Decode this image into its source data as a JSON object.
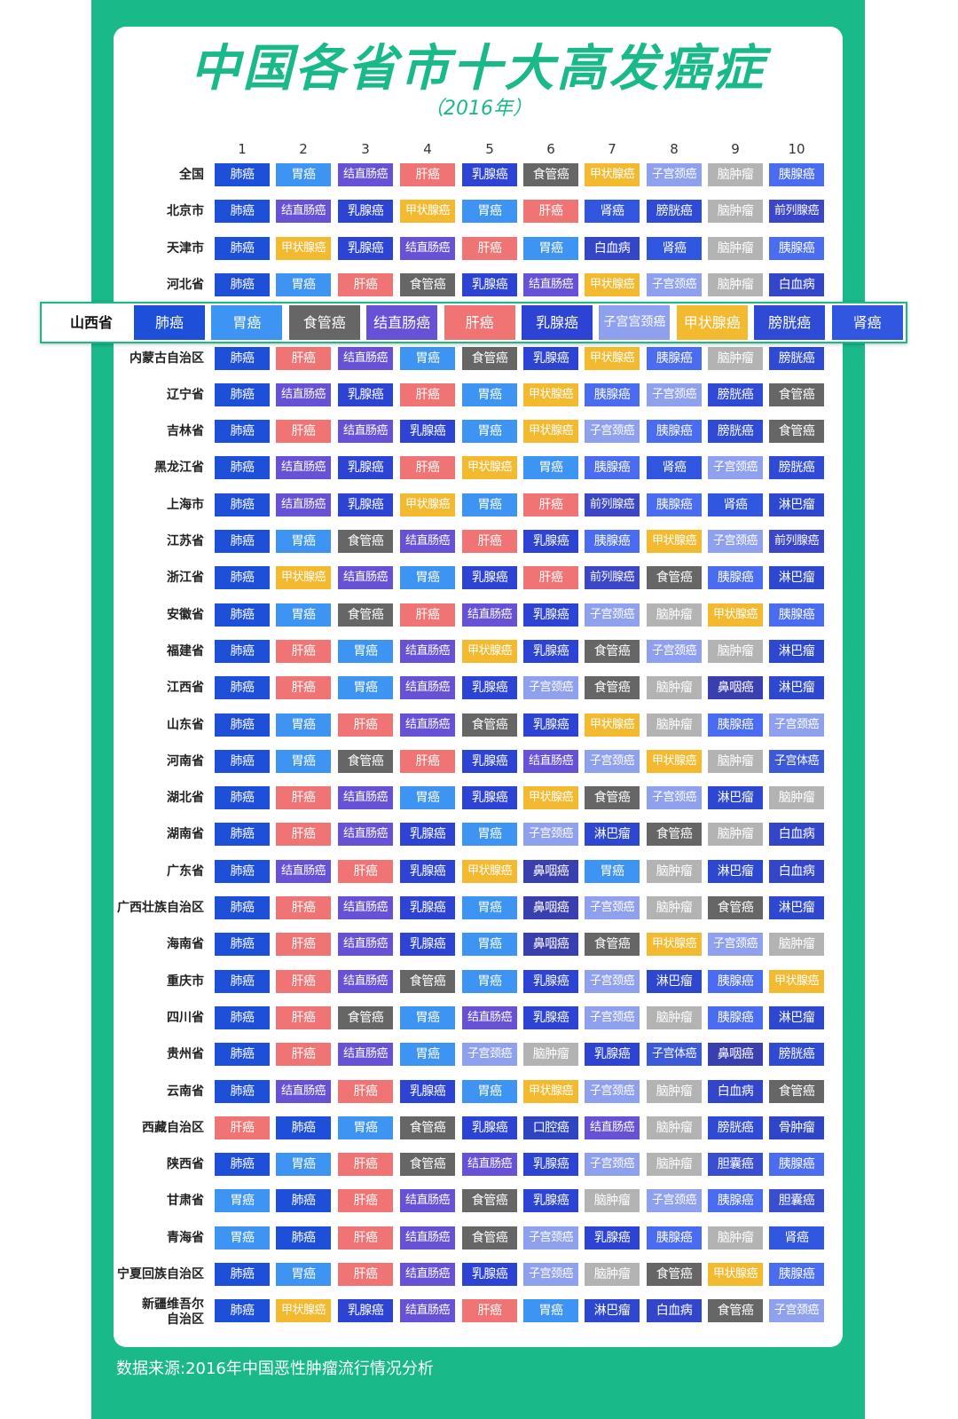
{
  "title": "中国各省市十大高发癌症",
  "subtitle": "（2016年）",
  "source": "数据来源:2016年中国恶性肿瘤流行情况分析",
  "colors": {
    "frame": "#19b98a",
    "肺癌": "#1d4fd8",
    "胃癌": "#3d94f2",
    "结直肠癌": "#6751d6",
    "肝癌": "#f07474",
    "乳腺癌": "#2c43d4",
    "食管癌": "#666666",
    "甲状腺癌": "#f3b92f",
    "子宫颈癌": "#8fa0ee",
    "脑肿瘤": "#b3b3b3",
    "胰腺癌": "#4a6cf0",
    "前列腺癌": "#3b46c8",
    "膀胱癌": "#2f4bd5",
    "肾癌": "#3157e0",
    "白血病": "#3346c9",
    "淋巴瘤": "#2d47d0",
    "鼻咽癌": "#3a3fb0",
    "子宫体癌": "#3c5ad8",
    "口腔癌": "#2e44c0",
    "骨肿瘤": "#2f45c8",
    "胆囊癌": "#3a4fcf"
  },
  "chart_data": {
    "type": "table",
    "columns": [
      "1",
      "2",
      "3",
      "4",
      "5",
      "6",
      "7",
      "8",
      "9",
      "10"
    ],
    "rows": [
      {
        "region": "全国",
        "cancers": [
          "肺癌",
          "胃癌",
          "结直肠癌",
          "肝癌",
          "乳腺癌",
          "食管癌",
          "甲状腺癌",
          "子宫颈癌",
          "脑肿瘤",
          "胰腺癌"
        ]
      },
      {
        "region": "北京市",
        "cancers": [
          "肺癌",
          "结直肠癌",
          "乳腺癌",
          "甲状腺癌",
          "胃癌",
          "肝癌",
          "肾癌",
          "膀胱癌",
          "脑肿瘤",
          "前列腺癌"
        ]
      },
      {
        "region": "天津市",
        "cancers": [
          "肺癌",
          "甲状腺癌",
          "乳腺癌",
          "结直肠癌",
          "肝癌",
          "胃癌",
          "白血病",
          "肾癌",
          "脑肿瘤",
          "胰腺癌"
        ]
      },
      {
        "region": "河北省",
        "cancers": [
          "肺癌",
          "胃癌",
          "肝癌",
          "食管癌",
          "乳腺癌",
          "结直肠癌",
          "甲状腺癌",
          "子宫颈癌",
          "脑肿瘤",
          "白血病"
        ]
      },
      {
        "region": "内蒙古自治区",
        "cancers": [
          "肺癌",
          "肝癌",
          "结直肠癌",
          "胃癌",
          "食管癌",
          "乳腺癌",
          "甲状腺癌",
          "胰腺癌",
          "脑肿瘤",
          "膀胱癌"
        ]
      },
      {
        "region": "辽宁省",
        "cancers": [
          "肺癌",
          "结直肠癌",
          "乳腺癌",
          "肝癌",
          "胃癌",
          "甲状腺癌",
          "胰腺癌",
          "子宫颈癌",
          "膀胱癌",
          "食管癌"
        ]
      },
      {
        "region": "吉林省",
        "cancers": [
          "肺癌",
          "肝癌",
          "结直肠癌",
          "乳腺癌",
          "胃癌",
          "甲状腺癌",
          "子宫颈癌",
          "胰腺癌",
          "膀胱癌",
          "食管癌"
        ]
      },
      {
        "region": "黑龙江省",
        "cancers": [
          "肺癌",
          "结直肠癌",
          "乳腺癌",
          "肝癌",
          "甲状腺癌",
          "胃癌",
          "胰腺癌",
          "肾癌",
          "子宫颈癌",
          "膀胱癌"
        ]
      },
      {
        "region": "上海市",
        "cancers": [
          "肺癌",
          "结直肠癌",
          "乳腺癌",
          "甲状腺癌",
          "胃癌",
          "肝癌",
          "前列腺癌",
          "胰腺癌",
          "肾癌",
          "淋巴瘤"
        ]
      },
      {
        "region": "江苏省",
        "cancers": [
          "肺癌",
          "胃癌",
          "食管癌",
          "结直肠癌",
          "肝癌",
          "乳腺癌",
          "胰腺癌",
          "甲状腺癌",
          "子宫颈癌",
          "前列腺癌"
        ]
      },
      {
        "region": "浙江省",
        "cancers": [
          "肺癌",
          "甲状腺癌",
          "结直肠癌",
          "胃癌",
          "乳腺癌",
          "肝癌",
          "前列腺癌",
          "食管癌",
          "胰腺癌",
          "淋巴瘤"
        ]
      },
      {
        "region": "安徽省",
        "cancers": [
          "肺癌",
          "胃癌",
          "食管癌",
          "肝癌",
          "结直肠癌",
          "乳腺癌",
          "子宫颈癌",
          "脑肿瘤",
          "甲状腺癌",
          "胰腺癌"
        ]
      },
      {
        "region": "福建省",
        "cancers": [
          "肺癌",
          "肝癌",
          "胃癌",
          "结直肠癌",
          "甲状腺癌",
          "乳腺癌",
          "食管癌",
          "子宫颈癌",
          "脑肿瘤",
          "淋巴瘤"
        ]
      },
      {
        "region": "江西省",
        "cancers": [
          "肺癌",
          "肝癌",
          "胃癌",
          "结直肠癌",
          "乳腺癌",
          "子宫颈癌",
          "食管癌",
          "脑肿瘤",
          "鼻咽癌",
          "淋巴瘤"
        ]
      },
      {
        "region": "山东省",
        "cancers": [
          "肺癌",
          "胃癌",
          "肝癌",
          "结直肠癌",
          "食管癌",
          "乳腺癌",
          "甲状腺癌",
          "脑肿瘤",
          "胰腺癌",
          "子宫颈癌"
        ]
      },
      {
        "region": "河南省",
        "cancers": [
          "肺癌",
          "胃癌",
          "食管癌",
          "肝癌",
          "乳腺癌",
          "结直肠癌",
          "子宫颈癌",
          "甲状腺癌",
          "脑肿瘤",
          "子宫体癌"
        ]
      },
      {
        "region": "湖北省",
        "cancers": [
          "肺癌",
          "肝癌",
          "结直肠癌",
          "胃癌",
          "乳腺癌",
          "甲状腺癌",
          "食管癌",
          "子宫颈癌",
          "淋巴瘤",
          "脑肿瘤"
        ]
      },
      {
        "region": "湖南省",
        "cancers": [
          "肺癌",
          "肝癌",
          "结直肠癌",
          "乳腺癌",
          "胃癌",
          "子宫颈癌",
          "淋巴瘤",
          "食管癌",
          "脑肿瘤",
          "白血病"
        ]
      },
      {
        "region": "广东省",
        "cancers": [
          "肺癌",
          "结直肠癌",
          "肝癌",
          "乳腺癌",
          "甲状腺癌",
          "鼻咽癌",
          "胃癌",
          "脑肿瘤",
          "淋巴瘤",
          "白血病"
        ]
      },
      {
        "region": "广西壮族自治区",
        "cancers": [
          "肺癌",
          "肝癌",
          "结直肠癌",
          "乳腺癌",
          "胃癌",
          "鼻咽癌",
          "子宫颈癌",
          "脑肿瘤",
          "食管癌",
          "淋巴瘤"
        ]
      },
      {
        "region": "海南省",
        "cancers": [
          "肺癌",
          "肝癌",
          "结直肠癌",
          "乳腺癌",
          "胃癌",
          "鼻咽癌",
          "食管癌",
          "甲状腺癌",
          "子宫颈癌",
          "脑肿瘤"
        ]
      },
      {
        "region": "重庆市",
        "cancers": [
          "肺癌",
          "肝癌",
          "结直肠癌",
          "食管癌",
          "胃癌",
          "乳腺癌",
          "子宫颈癌",
          "淋巴瘤",
          "胰腺癌",
          "甲状腺癌"
        ]
      },
      {
        "region": "四川省",
        "cancers": [
          "肺癌",
          "肝癌",
          "食管癌",
          "胃癌",
          "结直肠癌",
          "乳腺癌",
          "子宫颈癌",
          "脑肿瘤",
          "胰腺癌",
          "淋巴瘤"
        ]
      },
      {
        "region": "贵州省",
        "cancers": [
          "肺癌",
          "肝癌",
          "结直肠癌",
          "胃癌",
          "子宫颈癌",
          "脑肿瘤",
          "乳腺癌",
          "子宫体癌",
          "鼻咽癌",
          "膀胱癌"
        ]
      },
      {
        "region": "云南省",
        "cancers": [
          "肺癌",
          "结直肠癌",
          "肝癌",
          "乳腺癌",
          "胃癌",
          "甲状腺癌",
          "子宫颈癌",
          "脑肿瘤",
          "白血病",
          "食管癌"
        ]
      },
      {
        "region": "西藏自治区",
        "cancers": [
          "肝癌",
          "肺癌",
          "胃癌",
          "食管癌",
          "乳腺癌",
          "口腔癌",
          "结直肠癌",
          "脑肿瘤",
          "膀胱癌",
          "骨肿瘤"
        ]
      },
      {
        "region": "陕西省",
        "cancers": [
          "肺癌",
          "胃癌",
          "肝癌",
          "食管癌",
          "结直肠癌",
          "乳腺癌",
          "子宫颈癌",
          "脑肿瘤",
          "胆囊癌",
          "胰腺癌"
        ]
      },
      {
        "region": "甘肃省",
        "cancers": [
          "胃癌",
          "肺癌",
          "肝癌",
          "结直肠癌",
          "食管癌",
          "乳腺癌",
          "脑肿瘤",
          "子宫颈癌",
          "胰腺癌",
          "胆囊癌"
        ]
      },
      {
        "region": "青海省",
        "cancers": [
          "胃癌",
          "肺癌",
          "肝癌",
          "结直肠癌",
          "食管癌",
          "子宫颈癌",
          "乳腺癌",
          "胰腺癌",
          "脑肿瘤",
          "肾癌"
        ]
      },
      {
        "region": "宁夏回族自治区",
        "cancers": [
          "肺癌",
          "胃癌",
          "肝癌",
          "结直肠癌",
          "乳腺癌",
          "子宫颈癌",
          "脑肿瘤",
          "食管癌",
          "甲状腺癌",
          "胰腺癌"
        ]
      },
      {
        "region": "新疆维吾尔自治区",
        "label_lines": [
          "新疆维吾尔",
          "自治区"
        ],
        "cancers": [
          "肺癌",
          "甲状腺癌",
          "乳腺癌",
          "结直肠癌",
          "肝癌",
          "胃癌",
          "淋巴瘤",
          "白血病",
          "食管癌",
          "子宫颈癌"
        ]
      }
    ],
    "highlight": {
      "region": "山西省",
      "cancers": [
        "肺癌",
        "胃癌",
        "食管癌",
        "结直肠癌",
        "肝癌",
        "乳腺癌",
        "子宫宫颈癌",
        "甲状腺癌",
        "膀胱癌",
        "肾癌"
      ]
    }
  }
}
